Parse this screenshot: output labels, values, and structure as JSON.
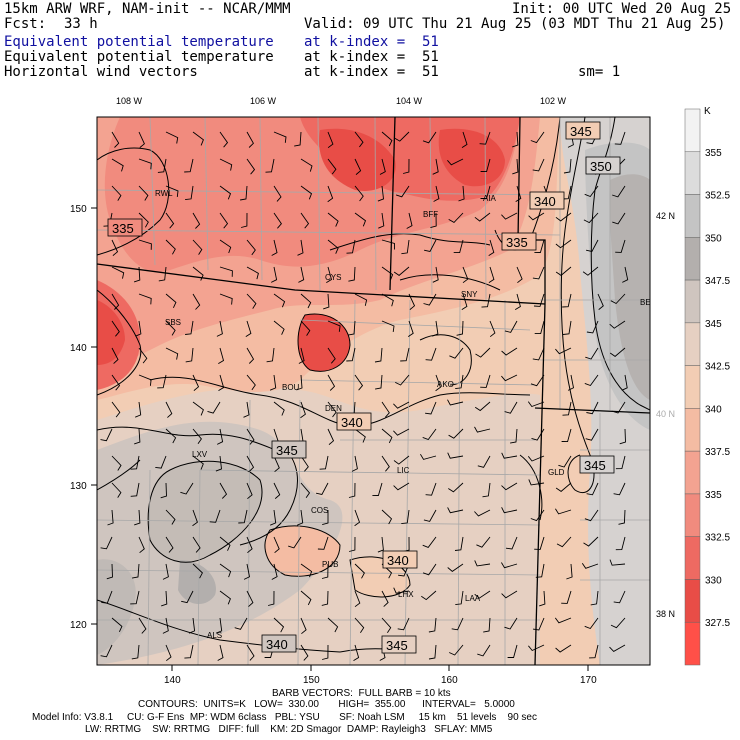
{
  "header": {
    "model": "15km ARW WRF, NAM-init -- NCAR/MMM",
    "init": "Init: 00 UTC Wed 20 Aug 25",
    "fcst_label": "Fcst:",
    "fcst_value": "33 h",
    "valid": "Valid: 09 UTC Thu 21 Aug 25 (03 MDT Thu 21 Aug 25)",
    "fields": [
      {
        "name": "Equivalent potential temperature",
        "level": "at k-index =  51",
        "color": "#1010a0"
      },
      {
        "name": "Equivalent potential temperature",
        "level": "at k-index =  51",
        "color": "#000000"
      },
      {
        "name": "Horizontal wind vectors",
        "level": "at k-index =  51",
        "color": "#000000"
      }
    ],
    "smooth": "sm= 1"
  },
  "map": {
    "lon_labels": [
      "108 W",
      "106 W",
      "104 W",
      "102 W"
    ],
    "lat_labels": [
      "42 N",
      "40 N",
      "38 N"
    ],
    "x_ticks": [
      "140",
      "150",
      "160",
      "170"
    ],
    "y_ticks": [
      "150",
      "140",
      "130",
      "120"
    ],
    "stations": [
      "RWL",
      "SBS",
      "CYS",
      "BFF",
      "AIA",
      "SNY",
      "BOU",
      "DEN",
      "AKO",
      "LXV",
      "LIC",
      "COS",
      "PUB",
      "GLD",
      "LHX",
      "LAA",
      "ALS",
      "BE"
    ],
    "contour_labels": [
      "345",
      "350",
      "340",
      "335",
      "335",
      "340",
      "345",
      "345",
      "340",
      "340",
      "345"
    ]
  },
  "colorbar": {
    "units": "K",
    "labels": [
      "355",
      "352.5",
      "350",
      "347.5",
      "345",
      "342.5",
      "340",
      "337.5",
      "335",
      "332.5",
      "330",
      "327.5"
    ],
    "colors": [
      "#f2f2f2",
      "#dcdcdc",
      "#c4c4c4",
      "#b3afad",
      "#cfc5bf",
      "#e6d0c2",
      "#f2cdb4",
      "#f4bca3",
      "#f3a391",
      "#f18b7e",
      "#ee6a62",
      "#e84d47",
      "#ff5048"
    ]
  },
  "footer": {
    "barb": "BARB VECTORS:  FULL BARB = 10 kts",
    "contours": "CONTOURS:  UNITS=K   LOW=  330.00       HIGH=  355.00      INTERVAL=   5.0000",
    "info1": "Model Info: V3.8.1     CU: G-F Ens  MP: WDM 6class   PBL: YSU       SF: Noah LSM     15 km    51 levels    90 sec",
    "info2": "LW: RRTMG    SW: RRTMG   DIFF: full    KM: 2D Smagor  DAMP: Rayleigh3   SFLAY: MM5"
  }
}
